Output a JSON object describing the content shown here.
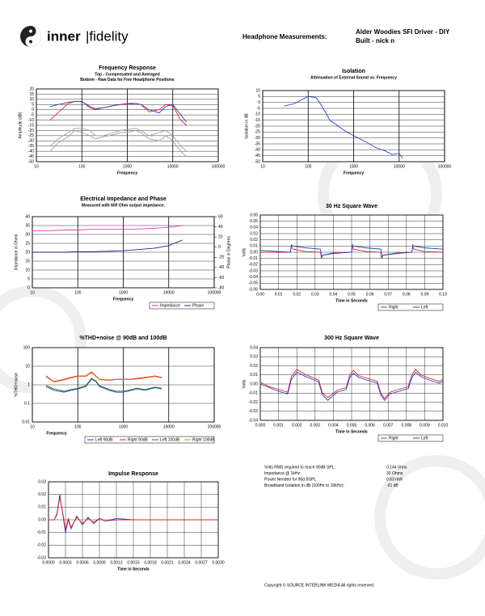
{
  "header": {
    "logo_left": "inner",
    "logo_right": "|fidelity",
    "heading": "Headphone Measurements:",
    "product": "Alder Woodies SFI Driver - DIY",
    "builder": "Built - nick n"
  },
  "stats": [
    [
      "Volts RMS required to reach 90dB SPL:",
      "0.144 Vrms"
    ],
    [
      "Impedance @ 1kHz:",
      "33 Ohms"
    ],
    [
      "Power Needed for 90d BSPL",
      "0.63 mW"
    ],
    [
      "Broadband Isolation in dB (100Hz to 10kHz):",
      "-21 dB"
    ]
  ],
  "footer": "Copyright © SOURCE INTERLINK MEDIA All rights reserved.",
  "chart_data": [
    {
      "type": "line",
      "title": "Frequency Response",
      "subtitle": [
        "Top - Compensated and Averaged",
        "Bottom - Raw Data for Five Headphone Positions"
      ],
      "xlabel": "Frequency",
      "ylabel": "Amplitude (dB)",
      "xlog": true,
      "grid": true,
      "x": [
        20,
        30,
        50,
        70,
        100,
        150,
        200,
        300,
        500,
        700,
        1000,
        1500,
        2000,
        3000,
        5000,
        7000,
        10000,
        15000,
        20000
      ],
      "series": [
        {
          "color": "#e0202a",
          "values": [
            -10,
            -3,
            6,
            8,
            8,
            2,
            0,
            2,
            4,
            5,
            5,
            6,
            5,
            -2,
            0,
            5,
            4,
            -10,
            -15
          ]
        },
        {
          "color": "#2a3fc0",
          "values": [
            3,
            5,
            7,
            8,
            8,
            3,
            1,
            2,
            4,
            5,
            6,
            6,
            5,
            0,
            -3,
            3,
            5,
            -5,
            -12
          ]
        },
        {
          "color": "#a0a0a0",
          "values": [
            -35,
            -28,
            -22,
            -18,
            -18,
            -20,
            -25,
            -25,
            -22,
            -20,
            -19,
            -18,
            -20,
            -25,
            -22,
            -20,
            -25,
            -35,
            -40
          ]
        },
        {
          "color": "#a0a0a0",
          "values": [
            -40,
            -32,
            -26,
            -20,
            -22,
            -25,
            -28,
            -26,
            -24,
            -22,
            -22,
            -20,
            -22,
            -28,
            -30,
            -25,
            -30,
            -40,
            -45
          ]
        }
      ],
      "xlim": [
        10,
        100000
      ],
      "xticks": [
        10,
        100,
        1000,
        10000,
        100000
      ],
      "ylim": [
        -50,
        20
      ],
      "yticks": [
        20,
        15,
        10,
        5,
        0,
        -5,
        -10,
        -15,
        -20,
        -25,
        -30,
        -35,
        -40,
        -45,
        -50
      ]
    },
    {
      "type": "line",
      "title": "Isolation",
      "subtitle": [
        "Attenuation of External Sound vs. Frequency"
      ],
      "xlabel": "Frequency",
      "ylabel": "Isolation in dB",
      "xlog": true,
      "grid": true,
      "x": [
        30,
        50,
        70,
        100,
        150,
        200,
        300,
        500,
        700,
        1000,
        2000,
        3000,
        5000,
        7000,
        10000,
        12000
      ],
      "series": [
        {
          "color": "#2a3fc0",
          "values": [
            -3,
            -1,
            2,
            5,
            4,
            -3,
            -15,
            -21,
            -25,
            -28,
            -34,
            -38,
            -41,
            -44,
            -43,
            -47
          ]
        }
      ],
      "xlim": [
        10,
        100000
      ],
      "xticks": [
        10,
        100,
        1000,
        10000,
        100000
      ],
      "ylim": [
        -50,
        10
      ],
      "yticks": [
        10,
        5,
        0,
        -5,
        -10,
        -15,
        -20,
        -25,
        -30,
        -35,
        -40,
        -45,
        -50
      ]
    },
    {
      "type": "line",
      "title": "Electrical Impedance and Phase",
      "subtitle": [
        "Measured with 600 Ohm output impedance."
      ],
      "xlabel": "Frequency",
      "ylabel": "Impedance in Ohms",
      "y2label": "Phase in Degrees",
      "xlog": true,
      "grid": true,
      "legend": "bottom-right",
      "x": [
        10,
        20,
        50,
        100,
        200,
        500,
        1000,
        2000,
        5000,
        10000,
        20000
      ],
      "series": [
        {
          "name": "Impedance",
          "color": "#e040c0",
          "values": [
            32,
            32,
            32.5,
            32.5,
            33,
            33,
            33,
            33,
            33.5,
            34,
            35
          ]
        },
        {
          "name": "Phase",
          "color": "#1a2a80",
          "axis": "y2",
          "values": [
            -10,
            -10,
            -10,
            -9,
            -9,
            -8,
            -7,
            -5,
            -2,
            3,
            14
          ]
        }
      ],
      "xlim": [
        10,
        100000
      ],
      "xticks": [
        10,
        100,
        1000,
        10000,
        100000
      ],
      "ylim": [
        0,
        40
      ],
      "yticks": [
        40,
        35,
        30,
        25,
        20,
        15,
        10,
        5,
        0
      ],
      "y2lim": [
        -80,
        60
      ],
      "y2ticks": [
        60,
        40,
        20,
        0,
        -20,
        -40,
        -60,
        -80
      ]
    },
    {
      "type": "line",
      "title": "30 Hz Square Wave",
      "xlabel": "Time in Seconds",
      "ylabel": "Volts",
      "grid": true,
      "legend": "bottom-right",
      "x": [
        0,
        0.005,
        0.01,
        0.0165,
        0.017,
        0.018,
        0.025,
        0.033,
        0.0335,
        0.034,
        0.04,
        0.05,
        0.0505,
        0.051,
        0.058,
        0.066,
        0.0665,
        0.067,
        0.075,
        0.083,
        0.0835,
        0.084,
        0.09,
        0.1
      ],
      "series": [
        {
          "name": "Right",
          "color": "#e0202a",
          "values": [
            0,
            0,
            0,
            0,
            0.01,
            0.005,
            0.001,
            0,
            -0.01,
            -0.005,
            -0.001,
            0,
            0.01,
            0.005,
            0.001,
            0,
            -0.01,
            -0.005,
            -0.001,
            0,
            0.01,
            0.005,
            0.001,
            0
          ]
        },
        {
          "name": "Left",
          "color": "#2a3fc0",
          "values": [
            0.003,
            0.002,
            0.001,
            0,
            0.012,
            0.01,
            0.007,
            0.005,
            -0.008,
            -0.005,
            -0.002,
            0,
            0.012,
            0.01,
            0.007,
            0.005,
            -0.008,
            -0.005,
            -0.002,
            0,
            0.012,
            0.01,
            0.007,
            0.005
          ]
        }
      ],
      "xlim": [
        0,
        0.1
      ],
      "xticks": [
        {
          "value": 0,
          "label": "0.00"
        },
        0.01,
        0.02,
        0.03,
        0.04,
        0.05,
        0.06,
        0.07,
        0.08,
        0.09,
        {
          "value": 0.1,
          "label": "0.10"
        }
      ],
      "ylim": [
        -0.06,
        0.06
      ],
      "yticks": [
        0.06,
        0.05,
        0.04,
        0.03,
        0.02,
        0.01,
        {
          "value": 0,
          "label": "0.00"
        },
        -0.01,
        -0.02,
        -0.03,
        -0.04,
        -0.05,
        -0.06
      ]
    },
    {
      "type": "line",
      "title": "%THD+noise @ 90dB and 100dB",
      "xlabel": "Frequency",
      "ylabel": "%THD+noise",
      "xlog": true,
      "ylog": true,
      "grid": true,
      "legend": "bottom-right",
      "x": [
        20,
        30,
        50,
        70,
        100,
        150,
        200,
        250,
        300,
        500,
        700,
        1000,
        1500,
        2000,
        3000,
        5000,
        7000
      ],
      "series": [
        {
          "name": "Left 90dB",
          "color": "#2a3fc0",
          "values": [
            0.8,
            0.5,
            0.4,
            0.5,
            0.6,
            0.8,
            2,
            1.5,
            0.8,
            0.5,
            0.4,
            0.4,
            0.5,
            0.6,
            0.5,
            0.7,
            0.6
          ]
        },
        {
          "name": "Right 90dB",
          "color": "#e0202a",
          "values": [
            3,
            1.5,
            2,
            2.5,
            3,
            3,
            5,
            3,
            2,
            1.8,
            2,
            2,
            2,
            2.2,
            2.5,
            3,
            2.5
          ]
        },
        {
          "name": "Left 100dB",
          "color": "#207020",
          "values": [
            0.9,
            0.6,
            0.45,
            0.55,
            0.65,
            0.9,
            2.2,
            1.6,
            0.9,
            0.55,
            0.45,
            0.45,
            0.55,
            0.65,
            0.55,
            0.75,
            0.65
          ]
        },
        {
          "name": "Right 100dB",
          "color": "#f08020",
          "values": [
            2.7,
            1.4,
            1.8,
            2.3,
            2.8,
            2.8,
            4.5,
            2.8,
            1.9,
            1.7,
            1.9,
            1.9,
            1.9,
            2,
            2.3,
            2.8,
            2.3
          ]
        }
      ],
      "xlim": [
        10,
        100000
      ],
      "xticks": [
        10,
        100,
        1000,
        10000,
        100000
      ],
      "ylim": [
        0.01,
        100
      ],
      "yticks": [
        100,
        10,
        1,
        0.1,
        0.01
      ]
    },
    {
      "type": "line",
      "title": "300 Hz Square Wave",
      "xlabel": "Time in Seconds",
      "ylabel": "Volts",
      "grid": true,
      "legend": "bottom-right",
      "x": [
        0,
        0.0005,
        0.001,
        0.0015,
        0.0017,
        0.002,
        0.0025,
        0.003,
        0.0032,
        0.0034,
        0.0037,
        0.0042,
        0.0047,
        0.0049,
        0.0051,
        0.0054,
        0.0059,
        0.0064,
        0.0066,
        0.0068,
        0.0071,
        0.0076,
        0.0081,
        0.0083,
        0.0085,
        0.0088,
        0.0093,
        0.0098,
        0.01
      ],
      "series": [
        {
          "name": "Right",
          "color": "#e0202a",
          "values": [
            0.002,
            -0.003,
            -0.006,
            -0.009,
            0.008,
            0.016,
            0.01,
            0.006,
            0.004,
            -0.01,
            -0.015,
            -0.007,
            -0.004,
            0.01,
            0.015,
            0.009,
            0.006,
            0.003,
            -0.01,
            -0.016,
            -0.009,
            -0.006,
            -0.003,
            0.01,
            0.016,
            0.01,
            0.006,
            0.003,
            0.005
          ]
        },
        {
          "name": "Left",
          "color": "#2a3fc0",
          "values": [
            0,
            -0.004,
            -0.008,
            -0.011,
            0.005,
            0.013,
            0.008,
            0.004,
            0.002,
            -0.012,
            -0.018,
            -0.009,
            -0.006,
            0.007,
            0.012,
            0.007,
            0.004,
            0.001,
            -0.012,
            -0.018,
            -0.011,
            -0.008,
            -0.005,
            0.007,
            0.013,
            0.008,
            0.004,
            0.001,
            0.003
          ]
        }
      ],
      "xlim": [
        0,
        0.01
      ],
      "xticks": [
        {
          "value": 0,
          "label": "0.000"
        },
        0.001,
        0.002,
        0.003,
        0.004,
        0.005,
        0.006,
        0.007,
        0.008,
        0.009,
        {
          "value": 0.01,
          "label": "0.010"
        }
      ],
      "ylim": [
        -0.04,
        0.04
      ],
      "yticks": [
        0.04,
        0.03,
        0.02,
        0.01,
        {
          "value": 0,
          "label": "0.00"
        },
        -0.01,
        -0.02,
        -0.03,
        -0.04
      ]
    },
    {
      "type": "line",
      "title": "Impulse Response",
      "xlabel": "Time in Seconds",
      "grid": true,
      "x": [
        0,
        0.0001,
        0.00015,
        0.0002,
        0.00025,
        0.0003,
        0.00035,
        0.0004,
        0.0005,
        0.0006,
        0.0007,
        0.0008,
        0.0009,
        0.001,
        0.0012,
        0.0015,
        0.002,
        0.0025,
        0.003
      ],
      "series": [
        {
          "color": "#2a3fc0",
          "values": [
            0,
            0,
            0.005,
            0.02,
            0.005,
            -0.01,
            0,
            -0.007,
            0.003,
            -0.004,
            0.002,
            -0.003,
            0.001,
            -0.001,
            0.001,
            0,
            0,
            0,
            0
          ]
        },
        {
          "color": "#e0202a",
          "values": [
            0,
            0,
            0.004,
            0.018,
            0.006,
            -0.008,
            0.001,
            -0.006,
            0.002,
            -0.003,
            0.001,
            -0.002,
            0.001,
            -0.001,
            0,
            0,
            0,
            0,
            0
          ]
        }
      ],
      "xlim": [
        0,
        0.003
      ],
      "xticks": [
        {
          "value": 0,
          "label": "0.0000"
        },
        0.0003,
        0.0006,
        0.0009,
        0.0012,
        0.0015,
        0.0018,
        0.0021,
        0.0024,
        0.0027,
        {
          "value": 0.003,
          "label": "0.0030"
        }
      ],
      "ylim": [
        -0.03,
        0.03
      ],
      "yticks": [
        0.03,
        0.02,
        0.01,
        {
          "value": 0,
          "label": "0.00"
        },
        -0.01,
        -0.02,
        -0.03
      ]
    }
  ]
}
